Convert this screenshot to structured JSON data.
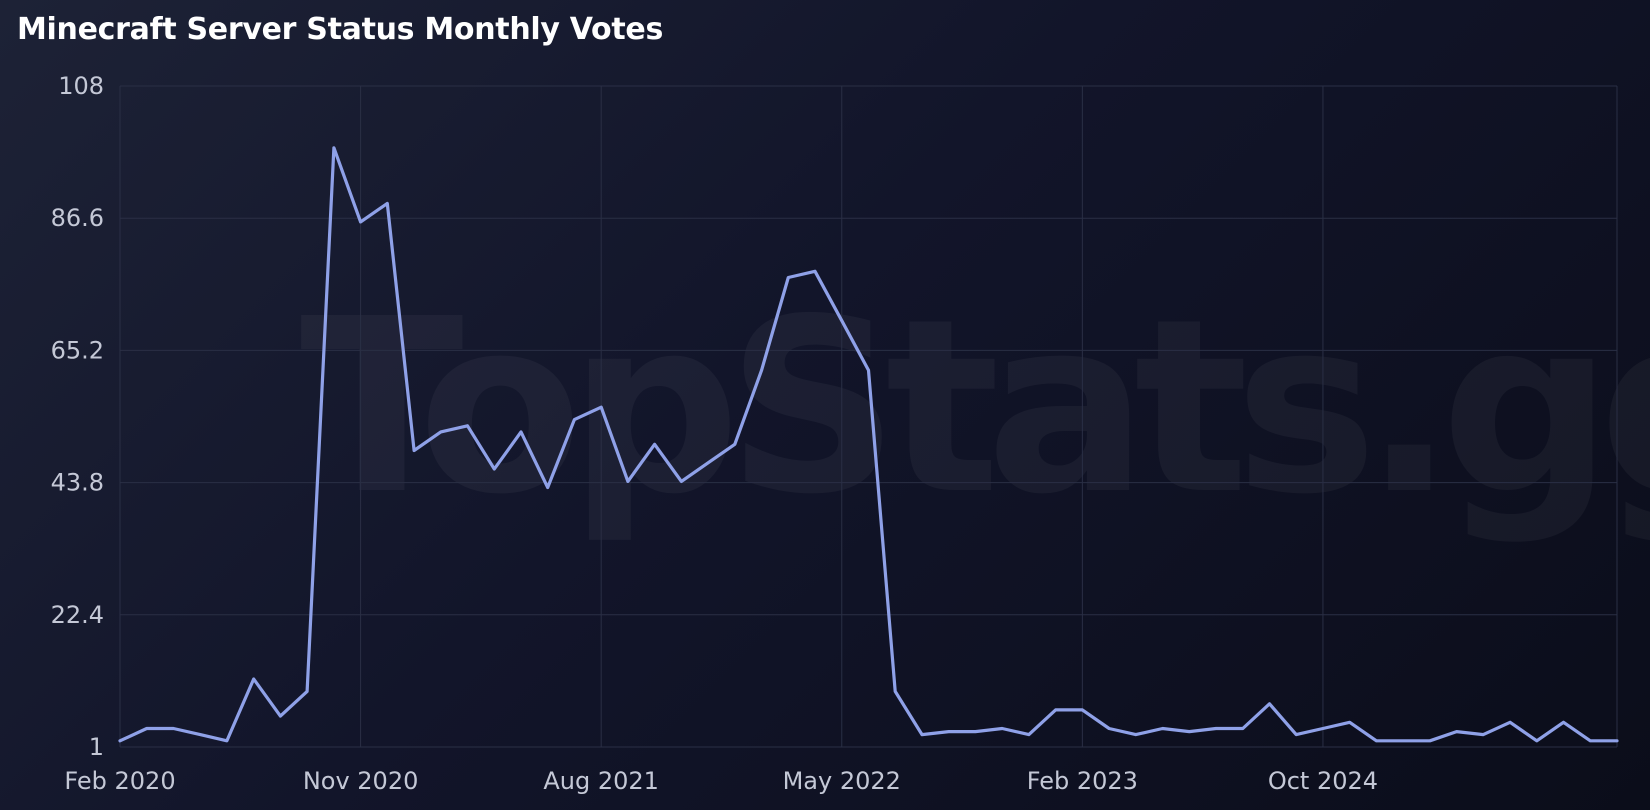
{
  "watermark": "TopStats.gg",
  "colors": {
    "line": "#8fa1e8",
    "grid": "#2a2f45",
    "text": "#c4c8d6",
    "title": "#ffffff"
  },
  "chart_data": {
    "type": "line",
    "title": "Minecraft Server Status Monthly Votes",
    "xlabel": "",
    "ylabel": "",
    "ylim": [
      1,
      108
    ],
    "yticks": [
      "1",
      "22.4",
      "43.8",
      "65.2",
      "86.6",
      "108"
    ],
    "xticks": [
      "Feb 2020",
      "Nov 2020",
      "Aug 2021",
      "May 2022",
      "Feb 2023",
      "Oct 2024"
    ],
    "grid": true,
    "legend": "none",
    "series": [
      {
        "values": [
          2,
          4,
          4,
          3,
          2,
          12,
          6,
          10,
          98,
          86,
          89,
          49,
          52,
          53,
          46,
          52,
          43,
          54,
          56,
          44,
          50,
          44,
          47,
          50,
          62,
          77,
          78,
          70,
          62,
          10,
          3,
          3.5,
          3.5,
          4,
          3,
          7,
          7,
          4,
          3,
          4,
          3.5,
          4,
          4,
          8,
          3,
          4,
          5,
          2,
          2,
          2,
          3.5,
          3,
          5,
          2,
          5,
          2,
          2
        ]
      }
    ]
  }
}
